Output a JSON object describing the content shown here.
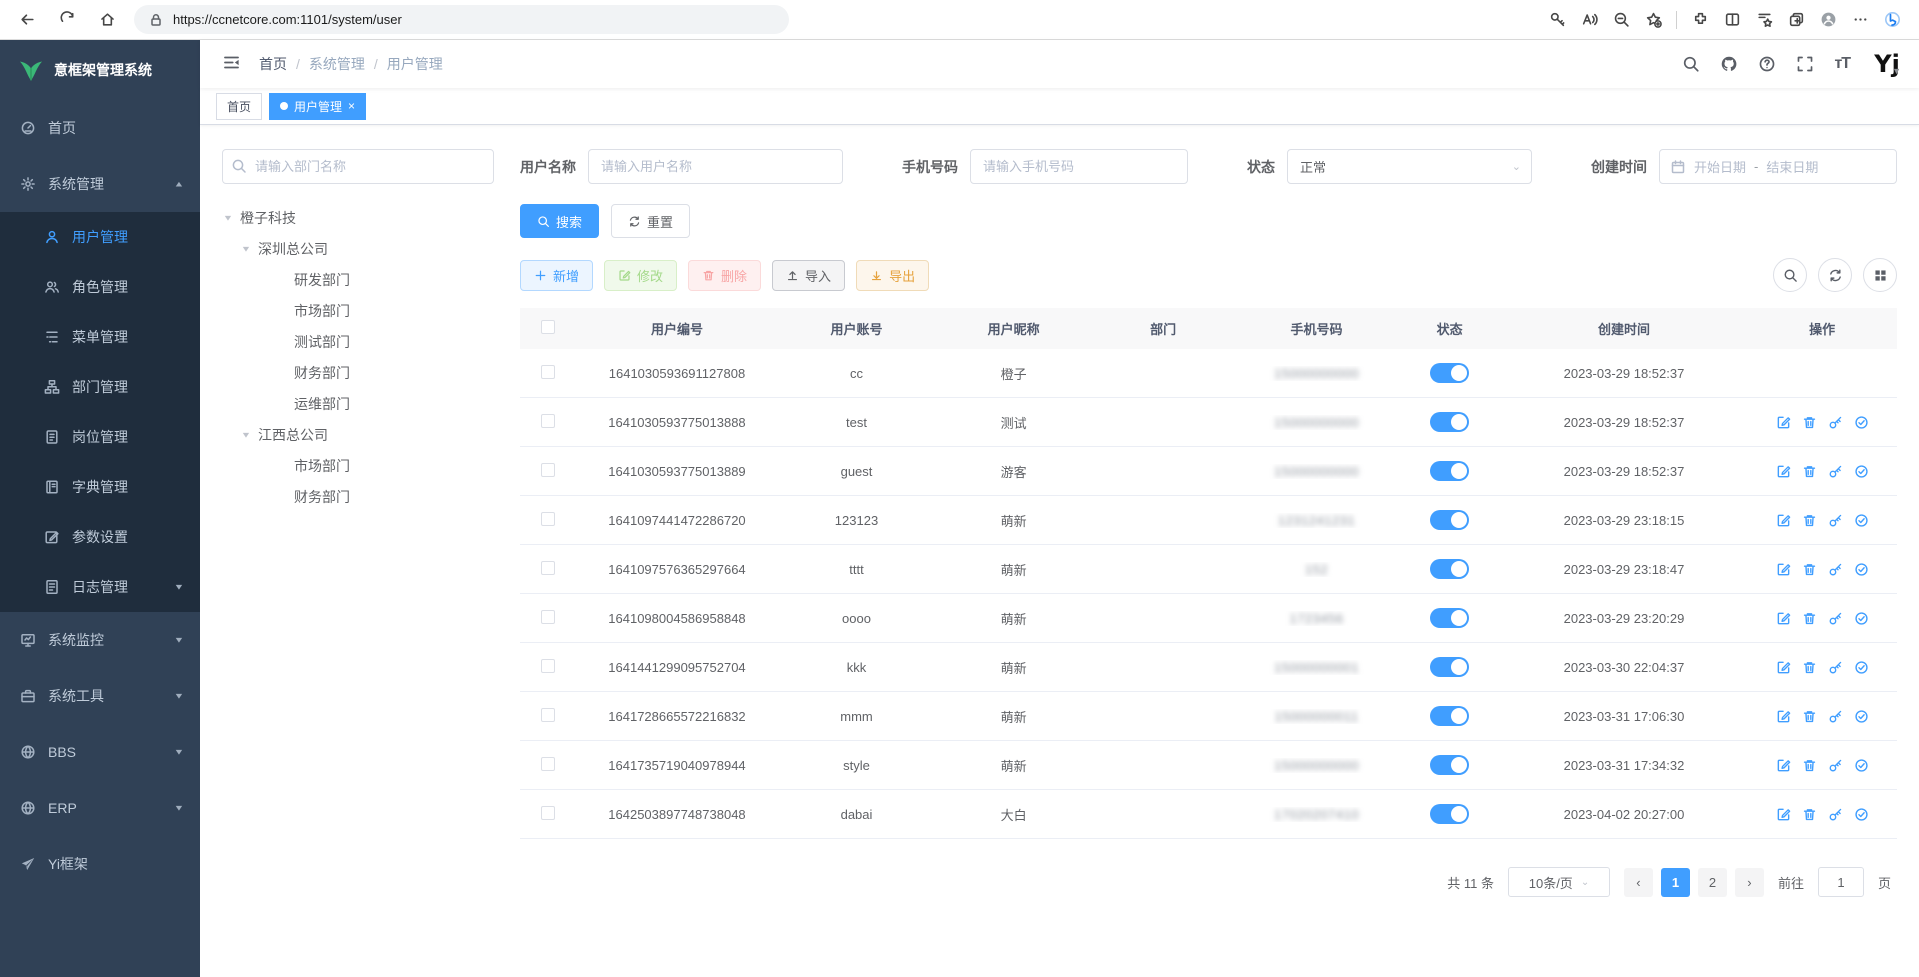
{
  "browser": {
    "url": "https://ccnetcore.com:1101/system/user",
    "nav_icons": [
      "back",
      "reload",
      "home"
    ],
    "right_icons": [
      "password",
      "read-aloud",
      "zoom-out",
      "favorite-add",
      "extensions",
      "split-screen",
      "collections",
      "tab-new",
      "profile",
      "more",
      "bing"
    ]
  },
  "sidebar": {
    "title": "意框架管理系统",
    "items": [
      {
        "label": "首页",
        "icon": "dashboard",
        "level": "top"
      },
      {
        "label": "系统管理",
        "icon": "gear",
        "level": "top",
        "arrow": "up"
      },
      {
        "label": "用户管理",
        "icon": "user",
        "level": "sub",
        "active": true
      },
      {
        "label": "角色管理",
        "icon": "users",
        "level": "sub"
      },
      {
        "label": "菜单管理",
        "icon": "menu",
        "level": "sub"
      },
      {
        "label": "部门管理",
        "icon": "org",
        "level": "sub"
      },
      {
        "label": "岗位管理",
        "icon": "badge",
        "level": "sub"
      },
      {
        "label": "字典管理",
        "icon": "book",
        "level": "sub"
      },
      {
        "label": "参数设置",
        "icon": "edit",
        "level": "sub"
      },
      {
        "label": "日志管理",
        "icon": "log",
        "level": "sub",
        "arrow": "down"
      },
      {
        "label": "系统监控",
        "icon": "monitor",
        "level": "top",
        "arrow": "down"
      },
      {
        "label": "系统工具",
        "icon": "toolbox",
        "level": "top",
        "arrow": "down"
      },
      {
        "label": "BBS",
        "icon": "globe",
        "level": "top",
        "arrow": "down"
      },
      {
        "label": "ERP",
        "icon": "globe",
        "level": "top",
        "arrow": "down"
      },
      {
        "label": "Yi框架",
        "icon": "plane",
        "level": "top"
      }
    ]
  },
  "header": {
    "breadcrumb": [
      "首页",
      "系统管理",
      "用户管理"
    ],
    "avatar_text": "Yj",
    "right_icons": [
      "search",
      "github",
      "question",
      "fullscreen",
      "font-size"
    ]
  },
  "tabs": [
    {
      "label": "首页",
      "active": false
    },
    {
      "label": "用户管理",
      "active": true,
      "closable": true
    }
  ],
  "filters": {
    "dept_placeholder": "请输入部门名称",
    "username": {
      "label": "用户名称",
      "placeholder": "请输入用户名称"
    },
    "phone": {
      "label": "手机号码",
      "placeholder": "请输入手机号码"
    },
    "status": {
      "label": "状态",
      "value": "正常"
    },
    "created": {
      "label": "创建时间",
      "start": "开始日期",
      "separator": "-",
      "end": "结束日期"
    },
    "search_label": "搜索",
    "reset_label": "重置"
  },
  "tree": {
    "items": [
      {
        "label": "橙子科技",
        "depth": 0,
        "caret": true
      },
      {
        "label": "深圳总公司",
        "depth": 1,
        "caret": true
      },
      {
        "label": "研发部门",
        "depth": 2
      },
      {
        "label": "市场部门",
        "depth": 2
      },
      {
        "label": "测试部门",
        "depth": 2
      },
      {
        "label": "财务部门",
        "depth": 2
      },
      {
        "label": "运维部门",
        "depth": 2
      },
      {
        "label": "江西总公司",
        "depth": 1,
        "caret": true
      },
      {
        "label": "市场部门",
        "depth": 2
      },
      {
        "label": "财务部门",
        "depth": 2
      }
    ]
  },
  "toolbar": {
    "add": "新增",
    "edit": "修改",
    "delete": "删除",
    "import": "导入",
    "export": "导出"
  },
  "table": {
    "columns": [
      "用户编号",
      "用户账号",
      "用户昵称",
      "部门",
      "手机号码",
      "状态",
      "创建时间",
      "操作"
    ],
    "rows": [
      {
        "id": "1641030593691127808",
        "account": "cc",
        "nickname": "橙子",
        "dept": "",
        "phone": "15000000000",
        "phone_masked": true,
        "status_on": true,
        "created": "2023-03-29 18:52:37",
        "actions": false
      },
      {
        "id": "1641030593775013888",
        "account": "test",
        "nickname": "测试",
        "dept": "",
        "phone": "15000000000",
        "phone_masked": true,
        "status_on": true,
        "created": "2023-03-29 18:52:37",
        "actions": true
      },
      {
        "id": "1641030593775013889",
        "account": "guest",
        "nickname": "游客",
        "dept": "",
        "phone": "15000000000",
        "phone_masked": true,
        "status_on": true,
        "created": "2023-03-29 18:52:37",
        "actions": true
      },
      {
        "id": "1641097441472286720",
        "account": "123123",
        "nickname": "萌新",
        "dept": "",
        "phone": "1231241231",
        "phone_masked": true,
        "status_on": true,
        "created": "2023-03-29 23:18:15",
        "actions": true
      },
      {
        "id": "1641097576365297664",
        "account": "tttt",
        "nickname": "萌新",
        "dept": "",
        "phone": "152",
        "phone_masked": true,
        "status_on": true,
        "created": "2023-03-29 23:18:47",
        "actions": true
      },
      {
        "id": "1641098004586958848",
        "account": "oooo",
        "nickname": "萌新",
        "dept": "",
        "phone": "1723456",
        "phone_masked": true,
        "status_on": true,
        "created": "2023-03-29 23:20:29",
        "actions": true
      },
      {
        "id": "1641441299095752704",
        "account": "kkk",
        "nickname": "萌新",
        "dept": "",
        "phone": "15000000001",
        "phone_masked": true,
        "status_on": true,
        "created": "2023-03-30 22:04:37",
        "actions": true
      },
      {
        "id": "1641728665572216832",
        "account": "mmm",
        "nickname": "萌新",
        "dept": "",
        "phone": "15000000011",
        "phone_masked": true,
        "status_on": true,
        "created": "2023-03-31 17:06:30",
        "actions": true
      },
      {
        "id": "1641735719040978944",
        "account": "style",
        "nickname": "萌新",
        "dept": "",
        "phone": "15000000000",
        "phone_masked": true,
        "status_on": true,
        "created": "2023-03-31 17:34:32",
        "actions": true
      },
      {
        "id": "1642503897748738048",
        "account": "dabai",
        "nickname": "大白",
        "dept": "",
        "phone": "17020207410",
        "phone_masked": true,
        "status_on": true,
        "created": "2023-04-02 20:27:00",
        "actions": true
      }
    ],
    "row_action_icons": [
      "edit",
      "trash",
      "key",
      "check-circle"
    ]
  },
  "pagination": {
    "total": "共 11 条",
    "page_size": "10条/页",
    "pages": [
      "1",
      "2"
    ],
    "current": "1",
    "goto_label": "前往",
    "goto_value": "1",
    "unit_label": "页"
  },
  "colors": {
    "accent": "#409eff",
    "sidebar_bg": "#304156",
    "submenu_bg": "#1f2d3d",
    "success": "#67c23a",
    "danger": "#f56c6c",
    "warning": "#e6a23c"
  }
}
